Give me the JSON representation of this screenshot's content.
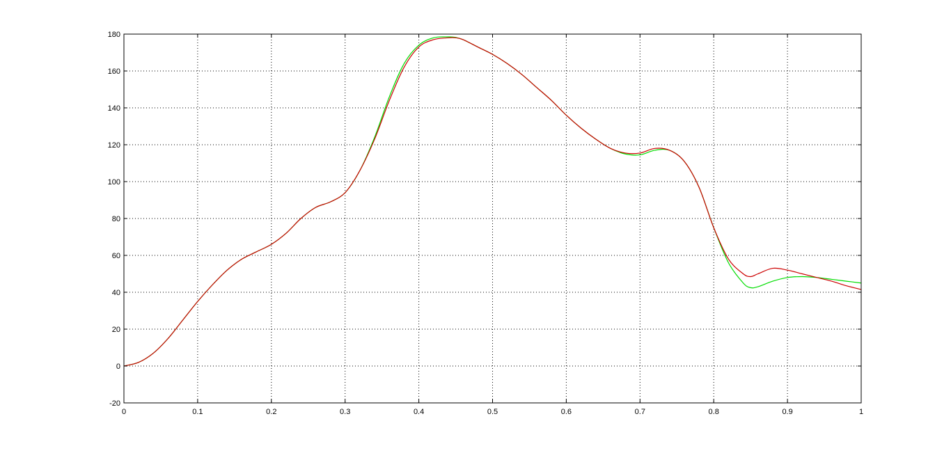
{
  "chart_data": {
    "type": "line",
    "title": "",
    "xlabel": "",
    "ylabel": "",
    "xlim": [
      0,
      1
    ],
    "ylim": [
      -20,
      180
    ],
    "xticks": [
      0,
      0.1,
      0.2,
      0.3,
      0.4,
      0.5,
      0.6,
      0.7,
      0.8,
      0.9,
      1
    ],
    "xtick_labels": [
      "0",
      "0.1",
      "0.2",
      "0.3",
      "0.4",
      "0.5",
      "0.6",
      "0.7",
      "0.8",
      "0.9",
      "1"
    ],
    "yticks": [
      -20,
      0,
      20,
      40,
      60,
      80,
      100,
      120,
      140,
      160,
      180
    ],
    "ytick_labels": [
      "-20",
      "0",
      "20",
      "40",
      "60",
      "80",
      "100",
      "120",
      "140",
      "160",
      "180"
    ],
    "grid": true,
    "legend": "none",
    "x": [
      0,
      0.02,
      0.04,
      0.06,
      0.08,
      0.1,
      0.12,
      0.14,
      0.16,
      0.18,
      0.2,
      0.22,
      0.24,
      0.26,
      0.28,
      0.3,
      0.32,
      0.34,
      0.36,
      0.38,
      0.4,
      0.42,
      0.44,
      0.45,
      0.46,
      0.48,
      0.5,
      0.52,
      0.54,
      0.56,
      0.58,
      0.6,
      0.62,
      0.64,
      0.66,
      0.68,
      0.7,
      0.72,
      0.74,
      0.76,
      0.78,
      0.8,
      0.82,
      0.84,
      0.85,
      0.86,
      0.88,
      0.9,
      0.92,
      0.94,
      0.96,
      0.98,
      1
    ],
    "series": [
      {
        "color": "#00dd00",
        "values": [
          0,
          2,
          7,
          15,
          25,
          35,
          44,
          52,
          58,
          62,
          66,
          72,
          80,
          86,
          89,
          94,
          106,
          124,
          146,
          164,
          174,
          178,
          178.5,
          178.2,
          177,
          173,
          169,
          164,
          158,
          151,
          144,
          136,
          129,
          123,
          118,
          115,
          114.5,
          117,
          117,
          111,
          97,
          75,
          56,
          45,
          42.5,
          43,
          46,
          48,
          48.5,
          48,
          47,
          46,
          45
        ]
      },
      {
        "color": "#cc0000",
        "values": [
          0,
          2,
          7,
          15,
          25,
          35,
          44,
          52,
          58,
          62,
          66,
          72,
          80,
          86,
          89,
          94,
          106,
          123,
          144,
          162,
          173,
          177,
          178,
          178,
          177,
          173,
          169,
          164,
          158,
          151,
          144,
          136,
          129,
          123,
          118,
          115.5,
          115.5,
          118,
          117,
          111,
          97,
          75,
          58,
          50,
          48.5,
          50,
          53,
          52,
          50,
          48,
          46,
          43.5,
          41.5
        ]
      }
    ]
  }
}
